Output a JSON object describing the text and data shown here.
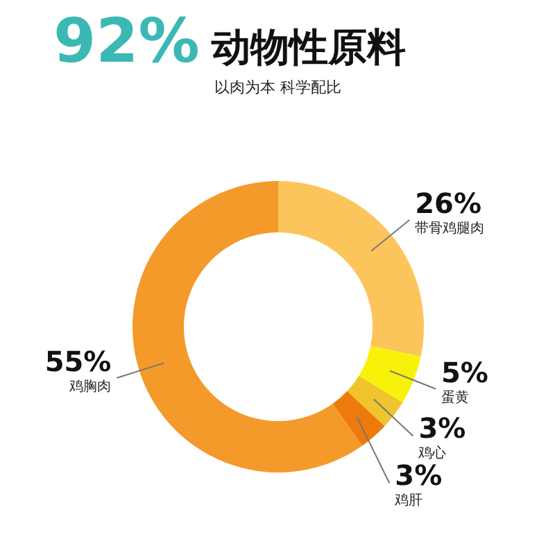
{
  "chart_data": {
    "type": "donut",
    "title": "92% 动物性原料",
    "subtitle": "以肉为本 科学配比",
    "categories": [
      "带骨鸡腿肉",
      "蛋黄",
      "鸡心",
      "鸡肝",
      "鸡胸肉"
    ],
    "values": [
      26,
      5,
      3,
      3,
      55
    ],
    "value_labels": [
      "26%",
      "5%",
      "3%",
      "3%",
      "55%"
    ],
    "colors": [
      "#fcc55c",
      "#f8f20a",
      "#f0c42c",
      "#ef7a0c",
      "#f49a2b"
    ]
  }
}
